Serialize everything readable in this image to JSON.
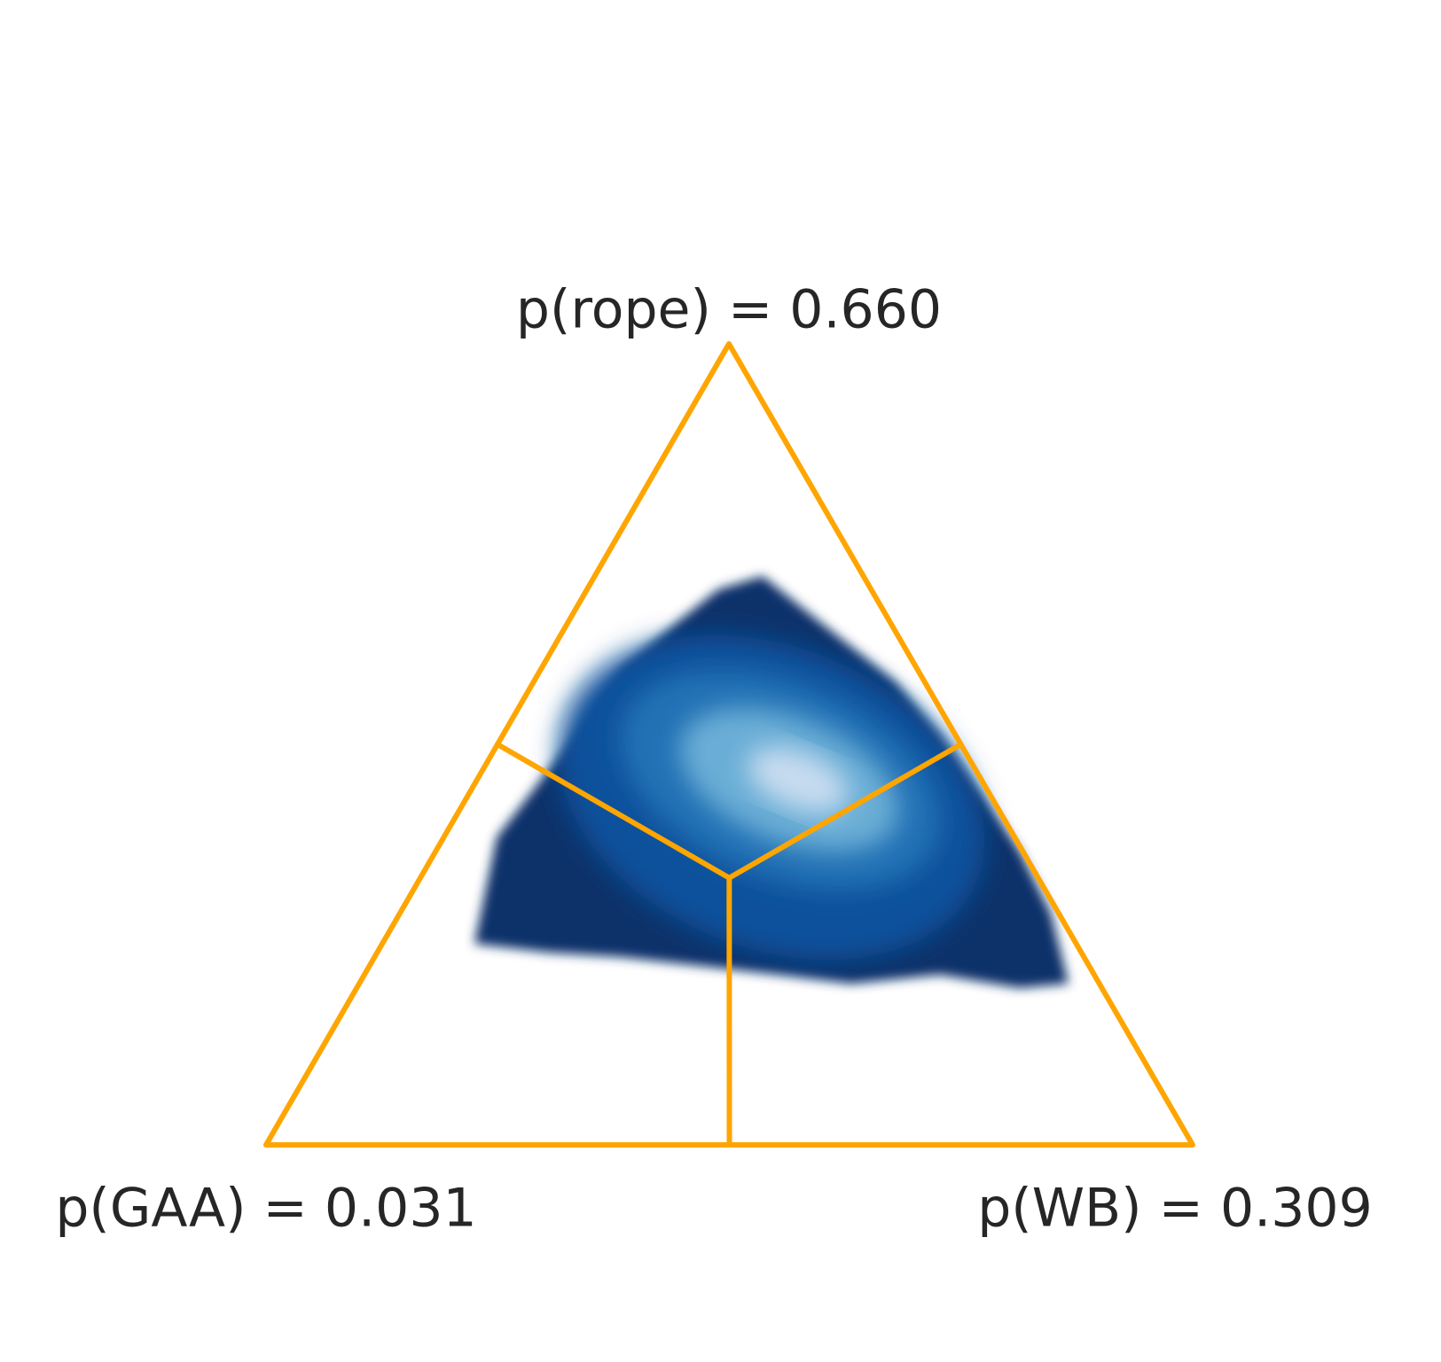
{
  "chart_data": {
    "type": "ternary",
    "vertex_labels": {
      "top": "p(rope) = 0.660",
      "left": "p(GAA) = 0.031",
      "right": "p(WB) = 0.309"
    },
    "color": "#ffa500"
  }
}
